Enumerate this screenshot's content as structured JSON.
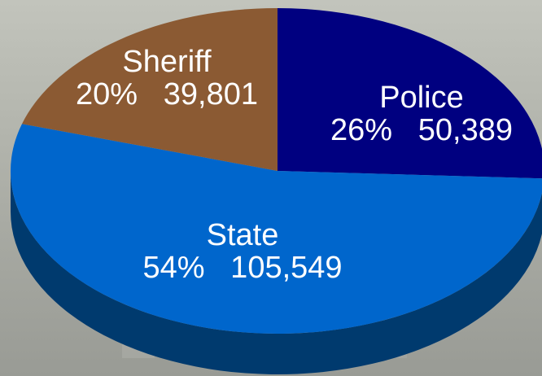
{
  "chart_data": {
    "type": "pie",
    "title": "",
    "legend": "none",
    "slices": [
      {
        "name": "Police",
        "percent_label": "26%",
        "value": 50389,
        "value_label": "50,389",
        "color": "#000080",
        "side_color": "#00004d"
      },
      {
        "name": "State",
        "percent_label": "54%",
        "value": 105549,
        "value_label": "105,549",
        "color": "#0066cc",
        "side_color": "#003a6e"
      },
      {
        "name": "Sheriff",
        "percent_label": "20%",
        "value": 39801,
        "value_label": "39,801",
        "color": "#8b5a33",
        "side_color": "#4e311b"
      }
    ],
    "percent_value_separator": "   "
  }
}
